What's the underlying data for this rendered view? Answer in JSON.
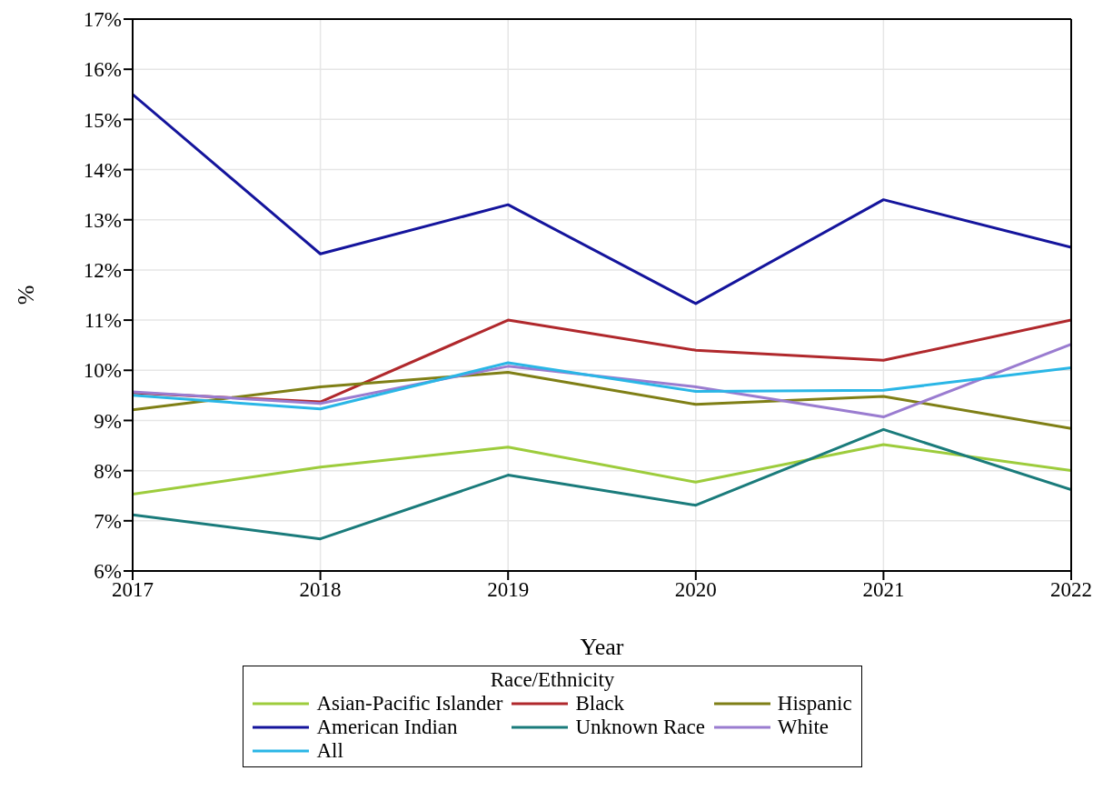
{
  "chart_data": {
    "type": "line",
    "xlabel": "Year",
    "ylabel": "%",
    "legend_title": "Race/Ethnicity",
    "legend": "bottom",
    "grid": true,
    "line_style": "solid",
    "marker": "none",
    "x": [
      2017,
      2018,
      2019,
      2020,
      2021,
      2022
    ],
    "xlim": [
      2017,
      2022
    ],
    "xticks": [
      2017,
      2018,
      2019,
      2020,
      2021,
      2022
    ],
    "ylim": [
      6,
      17
    ],
    "yticks": [
      {
        "value": 6,
        "label": "6%"
      },
      {
        "value": 7,
        "label": "7%"
      },
      {
        "value": 8,
        "label": "8%"
      },
      {
        "value": 9,
        "label": "9%"
      },
      {
        "value": 10,
        "label": "10%"
      },
      {
        "value": 11,
        "label": "11%"
      },
      {
        "value": 12,
        "label": "12%"
      },
      {
        "value": 13,
        "label": "13%"
      },
      {
        "value": 14,
        "label": "14%"
      },
      {
        "value": 15,
        "label": "15%"
      },
      {
        "value": 16,
        "label": "16%"
      },
      {
        "value": 17,
        "label": "17%"
      }
    ],
    "series": [
      {
        "name": "Asian-Pacific Islander",
        "color": "#9dcc3c",
        "values": [
          7.53,
          8.07,
          8.47,
          7.77,
          8.52,
          8.0
        ]
      },
      {
        "name": "Black",
        "color": "#b0282c",
        "values": [
          9.55,
          9.37,
          11.0,
          10.4,
          10.2,
          11.0
        ]
      },
      {
        "name": "Hispanic",
        "color": "#7f7f16",
        "values": [
          9.21,
          9.67,
          9.96,
          9.32,
          9.48,
          8.84
        ]
      },
      {
        "name": "American Indian",
        "color": "#14149c",
        "values": [
          15.5,
          12.32,
          13.3,
          11.33,
          13.4,
          12.45
        ]
      },
      {
        "name": "Unknown Race",
        "color": "#1a7b7b",
        "values": [
          7.12,
          6.64,
          7.91,
          7.31,
          8.82,
          7.62
        ]
      },
      {
        "name": "White",
        "color": "#9a7cd0",
        "values": [
          9.57,
          9.34,
          10.08,
          9.67,
          9.07,
          10.52
        ]
      },
      {
        "name": "All",
        "color": "#2ab6e6",
        "values": [
          9.5,
          9.23,
          10.15,
          9.58,
          9.6,
          10.05
        ]
      }
    ]
  }
}
